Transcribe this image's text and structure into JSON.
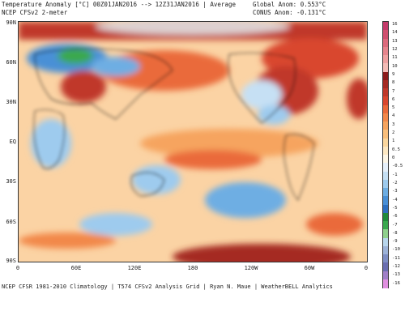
{
  "header": {
    "title_line1": "Temperature Anomaly [°C] 00Z01JAN2016 --> 12Z31JAN2016 | Average",
    "title_line2": "NCEP CFSv2 2-meter",
    "global_anom": "Global Anom: 0.553°C",
    "conus_anom": "CONUS Anom: -0.131°C"
  },
  "axes": {
    "lat_labels": [
      "90N",
      "60N",
      "30N",
      "EQ",
      "30S",
      "60S",
      "90S"
    ],
    "lon_labels": [
      "0",
      "60E",
      "120E",
      "180",
      "120W",
      "60W",
      "0"
    ]
  },
  "footer": "NCEP CFSR 1981-2010 Climatology | T574 CFSv2 Analysis Grid | Ryan N. Maue | WeatherBELL Analytics",
  "colorbar": {
    "labels": [
      "16",
      "14",
      "13",
      "12",
      "11",
      "10",
      "9",
      "8",
      "7",
      "6",
      "5",
      "4",
      "3",
      "2",
      "1",
      "0.5",
      "0",
      "-0.5",
      "-1",
      "-2",
      "-3",
      "-4",
      "-5",
      "-6",
      "-7",
      "-8",
      "-9",
      "-10",
      "-11",
      "-12",
      "-13",
      "-16"
    ],
    "colors": [
      "#c43a6a",
      "#d0506f",
      "#dc6a7c",
      "#e5858d",
      "#eea0a0",
      "#f3bcb6",
      "#8b1a1a",
      "#a52a22",
      "#c0392b",
      "#d9472f",
      "#ea6a3a",
      "#f2884a",
      "#f6a45e",
      "#f9bf7c",
      "#fbd79e",
      "#fde8c2",
      "#fdf6e6",
      "#e6f0fa",
      "#c6e0f4",
      "#9ecbee",
      "#6eaee3",
      "#4a90d6",
      "#2e6fc0",
      "#1f8a3a",
      "#3aa84e",
      "#8fd08c",
      "#b8d6ec",
      "#9db3d8",
      "#7e8fc4",
      "#6a6eb0",
      "#a080c8",
      "#e090e0"
    ]
  }
}
